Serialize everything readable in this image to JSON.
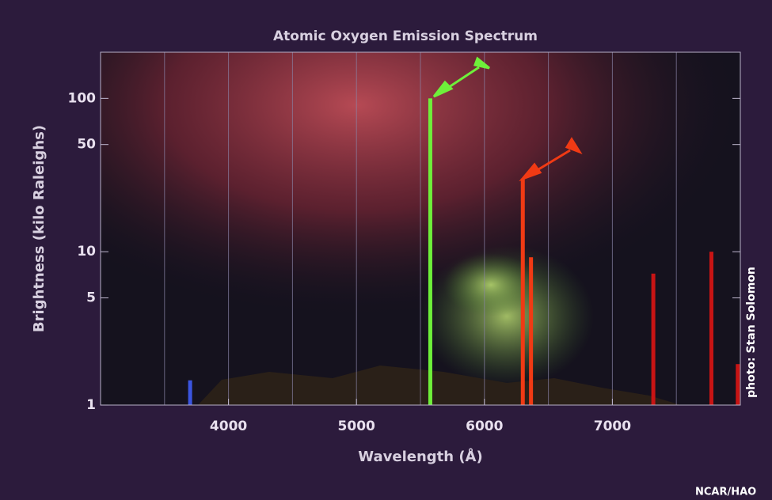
{
  "chart_data": {
    "type": "bar",
    "title": "Atomic Oxygen Emission Spectrum",
    "x_label": "Wavelength (Å)",
    "y_label": "Brightness (kilo Raleighs)",
    "x": [
      3700,
      5577,
      6300,
      6364,
      7320,
      7774,
      7980
    ],
    "values": [
      1.45,
      100,
      30,
      9.2,
      7.2,
      10,
      1.85
    ],
    "colors": [
      "#3b55e0",
      "#6ef03a",
      "#f03a14",
      "#f03a14",
      "#c81414",
      "#c81414",
      "#c81414"
    ],
    "xlim": [
      3000,
      8000
    ],
    "xticks": [
      4000,
      5000,
      6000,
      7000
    ],
    "x_gridlines": [
      3500,
      4000,
      4500,
      5000,
      5500,
      6000,
      6500,
      7000,
      7500
    ],
    "ylim": [
      1,
      200
    ],
    "yticks": [
      1,
      5,
      10,
      50,
      100
    ],
    "y_scale": "log",
    "annotations": [
      "photo: Stan Solomon",
      "NCAR/HAO"
    ]
  }
}
